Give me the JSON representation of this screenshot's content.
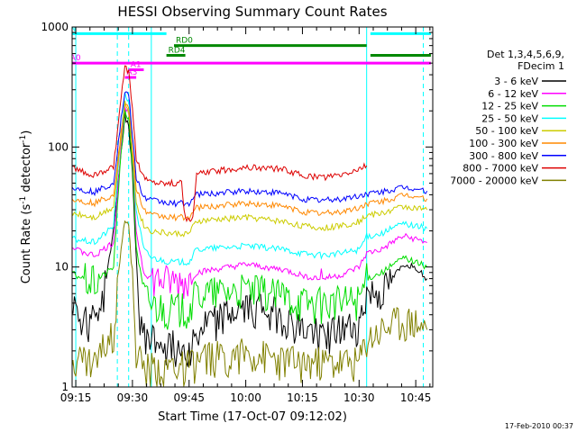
{
  "chart_data": {
    "type": "line",
    "title": "HESSI Observing Summary Count Rates",
    "xlabel": "Start Time (17-Oct-07 09:12:02)",
    "ylabel_main": "Count Rate (s",
    "ylabel_sup1": "-1",
    "ylabel_mid": " detector",
    "ylabel_sup2": "-1",
    "ylabel_end": ")",
    "y_scale": "log",
    "ylim": [
      1,
      1000
    ],
    "y_ticks": [
      {
        "value": 1,
        "label": "1"
      },
      {
        "value": 10,
        "label": "10"
      },
      {
        "value": 100,
        "label": "100"
      },
      {
        "value": 1000,
        "label": "1000"
      }
    ],
    "x_range": [
      "09:12",
      "10:50"
    ],
    "x_ticks": [
      {
        "value": "09:15",
        "label": "09:15"
      },
      {
        "value": "09:30",
        "label": "09:30"
      },
      {
        "value": "09:45",
        "label": "09:45"
      },
      {
        "value": "10:00",
        "label": "10:00"
      },
      {
        "value": "10:15",
        "label": "10:15"
      },
      {
        "value": "10:30",
        "label": "10:30"
      },
      {
        "value": "10:45",
        "label": "10:45"
      }
    ],
    "legend_header": [
      "Det 1,3,4,5,6,9,",
      "FDecim 1"
    ],
    "legend_position": "right",
    "series": [
      {
        "name": "3 - 6 keV",
        "color": "#000000",
        "points": [
          [
            "09:12",
            10
          ],
          [
            "09:15",
            4.5
          ],
          [
            "09:18",
            3.5
          ],
          [
            "09:22",
            5
          ],
          [
            "09:25",
            20
          ],
          [
            "09:27",
            90
          ],
          [
            "09:28",
            180
          ],
          [
            "09:29",
            150
          ],
          [
            "09:30",
            60
          ],
          [
            "09:31",
            12
          ],
          [
            "09:32",
            3
          ],
          [
            "09:35",
            2.5
          ],
          [
            "09:40",
            2.2
          ],
          [
            "09:45",
            2.2
          ],
          [
            "09:50",
            3.5
          ],
          [
            "10:00",
            4.5
          ],
          [
            "10:05",
            4.8
          ],
          [
            "10:10",
            3.8
          ],
          [
            "10:15",
            3
          ],
          [
            "10:20",
            2.8
          ],
          [
            "10:25",
            3
          ],
          [
            "10:30",
            3.2
          ],
          [
            "10:32",
            6
          ],
          [
            "10:36",
            6
          ],
          [
            "10:40",
            9
          ],
          [
            "10:42",
            10.5
          ],
          [
            "10:45",
            10
          ],
          [
            "10:48",
            8
          ]
        ]
      },
      {
        "name": "6 - 12 keV",
        "color": "#ff00ff",
        "points": [
          [
            "09:12",
            16
          ],
          [
            "09:15",
            14
          ],
          [
            "09:20",
            12.5
          ],
          [
            "09:25",
            16
          ],
          [
            "09:27",
            100
          ],
          [
            "09:28",
            220
          ],
          [
            "09:29",
            190
          ],
          [
            "09:30",
            80
          ],
          [
            "09:31",
            20
          ],
          [
            "09:33",
            9
          ],
          [
            "09:35",
            8
          ],
          [
            "09:40",
            7.5
          ],
          [
            "09:45",
            7.5
          ],
          [
            "09:47",
            9
          ],
          [
            "10:00",
            10.5
          ],
          [
            "10:05",
            10
          ],
          [
            "10:10",
            9.5
          ],
          [
            "10:15",
            8.5
          ],
          [
            "10:20",
            8
          ],
          [
            "10:25",
            8.5
          ],
          [
            "10:30",
            10
          ],
          [
            "10:32",
            13
          ],
          [
            "10:36",
            14
          ],
          [
            "10:40",
            17
          ],
          [
            "10:42",
            18
          ],
          [
            "10:45",
            17
          ],
          [
            "10:48",
            16
          ]
        ]
      },
      {
        "name": "12 - 25 keV",
        "color": "#00dd00",
        "points": [
          [
            "09:12",
            10
          ],
          [
            "09:15",
            8.5
          ],
          [
            "09:20",
            7.5
          ],
          [
            "09:25",
            10
          ],
          [
            "09:27",
            90
          ],
          [
            "09:28",
            200
          ],
          [
            "09:29",
            170
          ],
          [
            "09:30",
            70
          ],
          [
            "09:31",
            15
          ],
          [
            "09:33",
            6
          ],
          [
            "09:35",
            5
          ],
          [
            "09:40",
            4.5
          ],
          [
            "09:45",
            4.5
          ],
          [
            "09:47",
            6
          ],
          [
            "10:00",
            6.5
          ],
          [
            "10:05",
            6.2
          ],
          [
            "10:10",
            5.8
          ],
          [
            "10:15",
            5.2
          ],
          [
            "10:20",
            5
          ],
          [
            "10:25",
            5.2
          ],
          [
            "10:30",
            5.5
          ],
          [
            "10:32",
            8
          ],
          [
            "10:36",
            9
          ],
          [
            "10:40",
            11
          ],
          [
            "10:42",
            12
          ],
          [
            "10:45",
            11
          ],
          [
            "10:48",
            10
          ]
        ]
      },
      {
        "name": "25 - 50 keV",
        "color": "#00ffff",
        "points": [
          [
            "09:12",
            18
          ],
          [
            "09:15",
            17
          ],
          [
            "09:20",
            16
          ],
          [
            "09:25",
            22
          ],
          [
            "09:27",
            130
          ],
          [
            "09:28",
            280
          ],
          [
            "09:29",
            240
          ],
          [
            "09:30",
            100
          ],
          [
            "09:31",
            30
          ],
          [
            "09:33",
            14
          ],
          [
            "09:35",
            12
          ],
          [
            "09:40",
            11
          ],
          [
            "09:45",
            11
          ],
          [
            "09:47",
            14
          ],
          [
            "10:00",
            15
          ],
          [
            "10:05",
            14.5
          ],
          [
            "10:10",
            14
          ],
          [
            "10:15",
            13
          ],
          [
            "10:20",
            12.5
          ],
          [
            "10:25",
            13
          ],
          [
            "10:30",
            14
          ],
          [
            "10:32",
            18
          ],
          [
            "10:36",
            19
          ],
          [
            "10:40",
            22
          ],
          [
            "10:42",
            23
          ],
          [
            "10:45",
            22
          ],
          [
            "10:48",
            21
          ]
        ]
      },
      {
        "name": "50 - 100 keV",
        "color": "#cccc00",
        "points": [
          [
            "09:12",
            30
          ],
          [
            "09:15",
            28
          ],
          [
            "09:20",
            26
          ],
          [
            "09:25",
            32
          ],
          [
            "09:27",
            120
          ],
          [
            "09:28",
            230
          ],
          [
            "09:29",
            200
          ],
          [
            "09:30",
            90
          ],
          [
            "09:31",
            35
          ],
          [
            "09:33",
            22
          ],
          [
            "09:35",
            20
          ],
          [
            "09:40",
            19
          ],
          [
            "09:45",
            19
          ],
          [
            "09:47",
            24
          ],
          [
            "10:00",
            26
          ],
          [
            "10:05",
            25
          ],
          [
            "10:10",
            24
          ],
          [
            "10:15",
            22
          ],
          [
            "10:20",
            21
          ],
          [
            "10:25",
            22
          ],
          [
            "10:30",
            24
          ],
          [
            "10:32",
            27
          ],
          [
            "10:36",
            28
          ],
          [
            "10:40",
            31
          ],
          [
            "10:42",
            32
          ],
          [
            "10:45",
            31
          ],
          [
            "10:48",
            30
          ]
        ]
      },
      {
        "name": "100 - 300 keV",
        "color": "#ff8800",
        "points": [
          [
            "09:12",
            38
          ],
          [
            "09:15",
            36
          ],
          [
            "09:20",
            34
          ],
          [
            "09:25",
            40
          ],
          [
            "09:27",
            130
          ],
          [
            "09:28",
            230
          ],
          [
            "09:29",
            210
          ],
          [
            "09:30",
            100
          ],
          [
            "09:31",
            45
          ],
          [
            "09:33",
            30
          ],
          [
            "09:35",
            27
          ],
          [
            "09:40",
            26
          ],
          [
            "09:45",
            26
          ],
          [
            "09:47",
            31
          ],
          [
            "10:00",
            34
          ],
          [
            "10:05",
            33
          ],
          [
            "10:10",
            32
          ],
          [
            "10:15",
            29
          ],
          [
            "10:20",
            28
          ],
          [
            "10:25",
            29
          ],
          [
            "10:30",
            31
          ],
          [
            "10:32",
            34
          ],
          [
            "10:36",
            35
          ],
          [
            "10:40",
            38
          ],
          [
            "10:42",
            40
          ],
          [
            "10:45",
            39
          ],
          [
            "10:48",
            37
          ]
        ]
      },
      {
        "name": "300 - 800 keV",
        "color": "#0000ff",
        "points": [
          [
            "09:12",
            48
          ],
          [
            "09:15",
            45
          ],
          [
            "09:20",
            42
          ],
          [
            "09:25",
            50
          ],
          [
            "09:27",
            170
          ],
          [
            "09:28",
            290
          ],
          [
            "09:29",
            270
          ],
          [
            "09:30",
            130
          ],
          [
            "09:31",
            55
          ],
          [
            "09:33",
            38
          ],
          [
            "09:35",
            36
          ],
          [
            "09:40",
            34
          ],
          [
            "09:45",
            34
          ],
          [
            "09:47",
            40
          ],
          [
            "10:00",
            43
          ],
          [
            "10:05",
            42
          ],
          [
            "10:10",
            41
          ],
          [
            "10:15",
            37
          ],
          [
            "10:20",
            36
          ],
          [
            "10:25",
            37
          ],
          [
            "10:30",
            39
          ],
          [
            "10:32",
            41
          ],
          [
            "10:36",
            42
          ],
          [
            "10:40",
            45
          ],
          [
            "10:42",
            46
          ],
          [
            "10:45",
            45
          ],
          [
            "10:48",
            43
          ]
        ]
      },
      {
        "name": "800 - 7000 keV",
        "color": "#dd0000",
        "points": [
          [
            "09:12",
            75
          ],
          [
            "09:15",
            65
          ],
          [
            "09:20",
            58
          ],
          [
            "09:25",
            68
          ],
          [
            "09:27",
            250
          ],
          [
            "09:28",
            470
          ],
          [
            "09:29",
            420
          ],
          [
            "09:30",
            200
          ],
          [
            "09:31",
            80
          ],
          [
            "09:33",
            55
          ],
          [
            "09:35",
            52
          ],
          [
            "09:40",
            50
          ],
          [
            "09:43",
            50
          ],
          [
            "09:44",
            25
          ],
          [
            "09:46",
            25
          ],
          [
            "09:47",
            60
          ],
          [
            "10:00",
            68
          ],
          [
            "10:05",
            67
          ],
          [
            "10:10",
            65
          ],
          [
            "10:15",
            58
          ],
          [
            "10:20",
            56
          ],
          [
            "10:25",
            58
          ],
          [
            "10:30",
            65
          ],
          [
            "10:32",
            70
          ]
        ]
      },
      {
        "name": "7000 - 20000 keV",
        "color": "#808000",
        "points": [
          [
            "09:12",
            2
          ],
          [
            "09:15",
            1.8
          ],
          [
            "09:20",
            1.6
          ],
          [
            "09:25",
            3
          ],
          [
            "09:27",
            15
          ],
          [
            "09:28",
            25
          ],
          [
            "09:29",
            22
          ],
          [
            "09:30",
            8
          ],
          [
            "09:31",
            2
          ],
          [
            "09:33",
            1.4
          ],
          [
            "09:40",
            1.5
          ],
          [
            "09:45",
            1.5
          ],
          [
            "09:50",
            1.8
          ],
          [
            "10:00",
            1.9
          ],
          [
            "10:10",
            1.7
          ],
          [
            "10:15",
            1.6
          ],
          [
            "10:25",
            1.6
          ],
          [
            "10:30",
            1.6
          ],
          [
            "10:32",
            2.5
          ],
          [
            "10:36",
            3
          ],
          [
            "10:40",
            3.5
          ],
          [
            "10:45",
            3.5
          ],
          [
            "10:48",
            3
          ]
        ]
      }
    ],
    "annotations": {
      "vlines_cyan_dashed": [
        "09:26",
        "09:29",
        "10:47"
      ],
      "vlines_cyan_solid": [
        "09:15",
        "09:35",
        "10:32"
      ],
      "bars": [
        {
          "label": "N",
          "color": "#00ffff",
          "start": "09:13",
          "end": "09:39",
          "level": 880
        },
        {
          "label": "",
          "color": "#00ffff",
          "start": "10:33",
          "end": "10:49",
          "level": 880
        },
        {
          "label": "RD0",
          "color": "#008800",
          "start": "09:41",
          "end": "10:32",
          "level": 700
        },
        {
          "label": "",
          "color": "#008800",
          "start": "10:33",
          "end": "10:49",
          "level": 580
        },
        {
          "label": "RD4",
          "color": "#008800",
          "start": "09:39",
          "end": "09:44",
          "level": 580
        },
        {
          "label": "A0",
          "color": "#ff00ff",
          "start": "09:13",
          "end": "10:49",
          "level": 500
        },
        {
          "label": "A1",
          "color": "#ff00ff",
          "start": "09:29",
          "end": "09:33",
          "level": 440
        },
        {
          "label": "A3",
          "color": "#ff00ff",
          "start": "09:28",
          "end": "09:31",
          "level": 380
        }
      ]
    },
    "footer_timestamp": "17-Feb-2010 00:37"
  }
}
